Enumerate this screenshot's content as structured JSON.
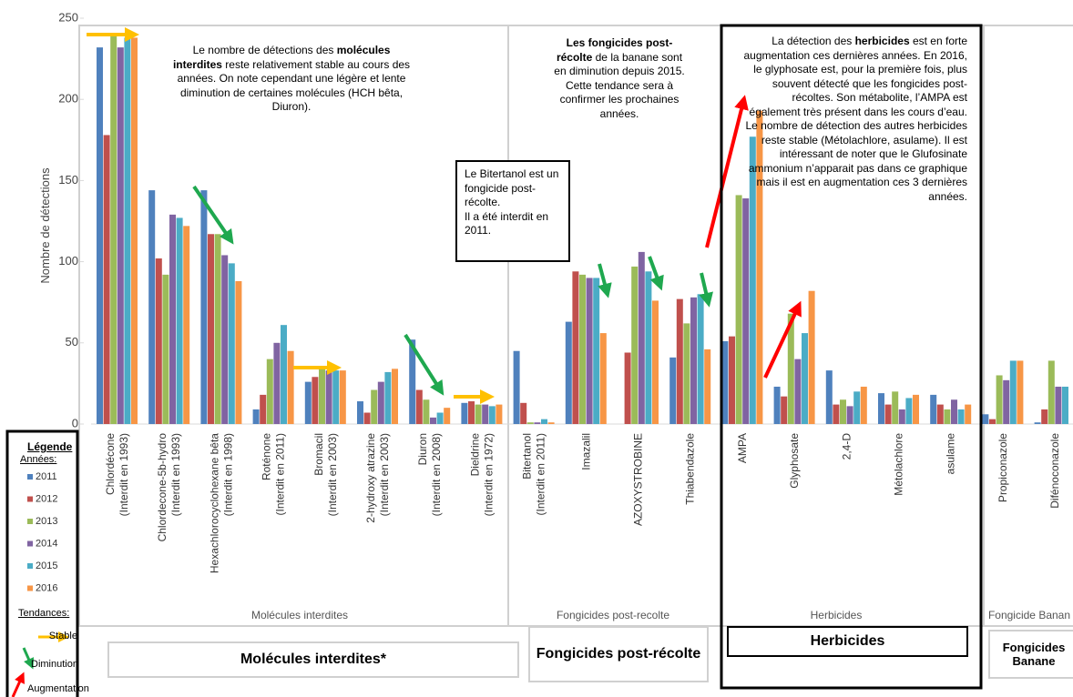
{
  "chart_data": {
    "type": "bar",
    "y_label": "Nombre de détections",
    "ylim": [
      0,
      250
    ],
    "yticks": [
      0,
      50,
      100,
      150,
      200,
      250
    ],
    "categories": [
      [
        "Chlordécone",
        "(Interdit en 1993)"
      ],
      [
        "Chlordecone-5b-hydro",
        "(Interdit en 1993)"
      ],
      [
        "Hexachlorocyclohexane bêta",
        "(Interdit en 1998)"
      ],
      [
        "Roténone",
        "(Interdit en 2011)"
      ],
      [
        "Bromacil",
        "(Interdit en 2003)"
      ],
      [
        "2-hydroxy atrazine",
        "(Interdit en 2003)"
      ],
      [
        "Diuron",
        "(Interdit en 2008)"
      ],
      [
        "Dieldrine",
        "(Interdit en 1972)"
      ],
      [
        "Bitertanol",
        "(Interdit en 2011)"
      ],
      [
        "Imazalil"
      ],
      [
        "AZOXYSTROBINE"
      ],
      [
        "Thiabendazole"
      ],
      [
        "AMPA"
      ],
      [
        "Glyphosate"
      ],
      [
        "2,4-D"
      ],
      [
        "Métolachlore"
      ],
      [
        "asulame"
      ],
      [
        "Propiconazole"
      ],
      [
        "Difénoconazole"
      ]
    ],
    "series": [
      {
        "name": "2011",
        "color": "#4f81bd",
        "values": [
          232,
          144,
          144,
          9,
          26,
          14,
          52,
          13,
          45,
          63,
          0,
          41,
          51,
          23,
          33,
          19,
          18,
          6,
          1
        ]
      },
      {
        "name": "2012",
        "color": "#c0504d",
        "values": [
          178,
          102,
          117,
          18,
          29,
          7,
          21,
          14,
          13,
          94,
          44,
          77,
          54,
          17,
          12,
          12,
          12,
          3,
          9
        ]
      },
      {
        "name": "2013",
        "color": "#9bbb59",
        "values": [
          240,
          92,
          117,
          40,
          35,
          21,
          15,
          12,
          1,
          92,
          97,
          62,
          141,
          68,
          15,
          20,
          9,
          30,
          39
        ]
      },
      {
        "name": "2014",
        "color": "#8064a2",
        "values": [
          232,
          129,
          104,
          50,
          33,
          26,
          4,
          12,
          1,
          90,
          106,
          78,
          139,
          40,
          11,
          9,
          15,
          27,
          23
        ]
      },
      {
        "name": "2015",
        "color": "#4bacc6",
        "values": [
          238,
          127,
          99,
          61,
          33,
          32,
          7,
          11,
          3,
          90,
          94,
          80,
          177,
          56,
          20,
          16,
          9,
          39,
          23
        ]
      },
      {
        "name": "2016",
        "color": "#f79646",
        "values": [
          238,
          122,
          88,
          45,
          33,
          34,
          10,
          12,
          1,
          56,
          76,
          46,
          193,
          82,
          23,
          18,
          12,
          39,
          null
        ]
      }
    ],
    "groups": [
      {
        "label": "Molécules interdites",
        "title": "Molécules interdites*"
      },
      {
        "label": "Fongicides post-recolte",
        "title": "Fongicides post-récolte"
      },
      {
        "label": "Herbicides",
        "title": "Herbicides"
      },
      {
        "label": "Fongicide Banan",
        "title": "Fongicides Banane"
      }
    ]
  },
  "annotations": [
    {
      "paragraphs": [
        [
          {
            "text": "Le nombre de détections des "
          },
          {
            "text": "molécules interdites",
            "bold": true
          },
          {
            "text": " reste relativement stable au cours des années. On note cependant une légère et lente diminution de certaines molécules (HCH bêta, Diuron)."
          }
        ]
      ]
    },
    {
      "paragraphs": [
        [
          {
            "text": "Les fongicides post-récolte",
            "bold": true
          },
          {
            "text": " de la banane sont en diminution depuis 2015. Cette tendance sera à confirmer les prochaines années."
          }
        ]
      ]
    },
    {
      "paragraphs": [
        [
          {
            "text": "Le Bitertanol est un fongicide post-récolte."
          }
        ],
        [
          {
            "text": "Il a été interdit en 2011."
          }
        ]
      ]
    },
    {
      "paragraphs": [
        [
          {
            "text": "La détection des "
          },
          {
            "text": "herbicides",
            "bold": true
          },
          {
            "text": " est en forte augmentation ces dernières années. En 2016, le glyphosate est, pour la première fois, plus souvent détecté que les fongicides post-récoltes. Son métabolite, l’AMPA est également très présent dans les cours d’eau. Le nombre de détection des autres herbicides reste stable (Métolachlore, asulame). Il est intéressant de noter que le Glufosinate ammonium n’apparait pas dans ce graphique mais il est en augmentation ces 3 dernières années."
          }
        ]
      ]
    }
  ],
  "legend": {
    "title": "Légende",
    "years_label": "Années:",
    "trends_label": "Tendances:",
    "trends": [
      "Stable",
      "Diminution",
      "Augmentation"
    ]
  }
}
